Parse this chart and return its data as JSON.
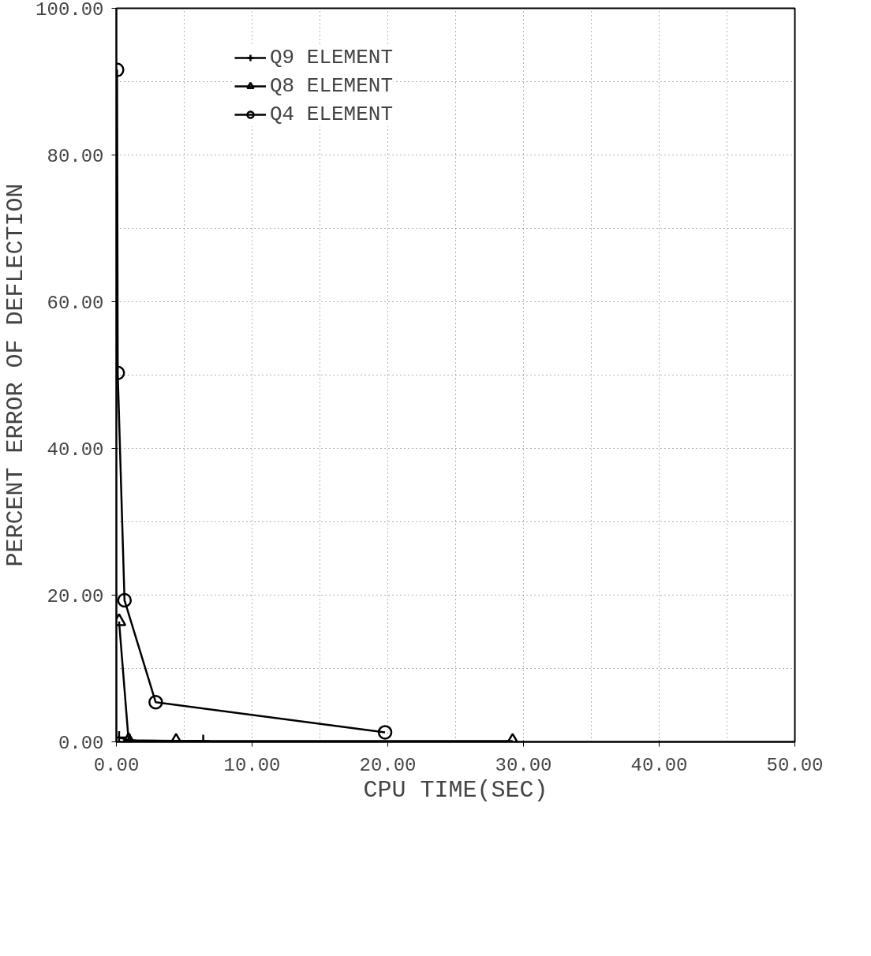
{
  "chart_data": {
    "type": "line",
    "xlabel": "CPU TIME(SEC)",
    "ylabel": "PERCENT ERROR OF DEFLECTION",
    "series": [
      {
        "name": "Q9 ELEMENT",
        "color": "#000000",
        "marker": "cross",
        "x": [
          0.2,
          1.0,
          6.4
        ],
        "values": [
          0.6,
          0.2,
          0.1
        ]
      },
      {
        "name": "Q8 ELEMENT",
        "color": "#000000",
        "marker": "triangle",
        "x": [
          0.2,
          0.9,
          4.4,
          29.2
        ],
        "values": [
          16.4,
          0.2,
          0.1,
          0.1
        ]
      },
      {
        "name": "Q4 ELEMENT",
        "color": "#000000",
        "marker": "circle",
        "x": [
          0.05,
          0.1,
          0.6,
          2.9,
          19.8
        ],
        "values": [
          91.6,
          50.3,
          19.3,
          5.4,
          1.3
        ]
      }
    ],
    "xlim": [
      0,
      50
    ],
    "ylim": [
      0,
      100
    ],
    "xticks": [
      {
        "value": 0,
        "label": "0.00"
      },
      {
        "value": 10,
        "label": "10.00"
      },
      {
        "value": 20,
        "label": "20.00"
      },
      {
        "value": 30,
        "label": "30.00"
      },
      {
        "value": 40,
        "label": "40.00"
      },
      {
        "value": 50,
        "label": "50.00"
      }
    ],
    "yticks": [
      {
        "value": 0,
        "label": "0.00"
      },
      {
        "value": 20,
        "label": "20.00"
      },
      {
        "value": 40,
        "label": "40.00"
      },
      {
        "value": 60,
        "label": "60.00"
      },
      {
        "value": 80,
        "label": "80.00"
      },
      {
        "value": 100,
        "label": "100.00"
      }
    ],
    "grid": true,
    "legend": "top left",
    "line_style": "solid"
  }
}
